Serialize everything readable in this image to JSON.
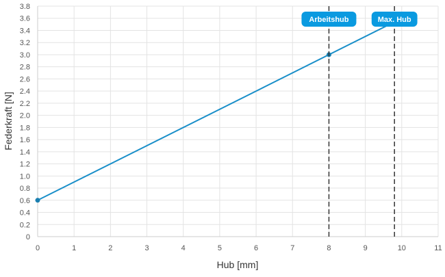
{
  "chart_data": {
    "type": "line",
    "title": "",
    "xlabel": "Hub [mm]",
    "ylabel": "Federkraft [N]",
    "xlim": [
      0,
      11
    ],
    "ylim": [
      0,
      3.8
    ],
    "x_ticks": [
      0,
      1,
      2,
      3,
      4,
      5,
      6,
      7,
      8,
      9,
      10,
      11
    ],
    "x_tick_labels": [
      "0",
      "1",
      "2",
      "3",
      "4",
      "5",
      "6",
      "7",
      "8",
      "9",
      "10",
      "11"
    ],
    "y_ticks": [
      0,
      0.2,
      0.4,
      0.6,
      0.8,
      1.0,
      1.2,
      1.4,
      1.6,
      1.8,
      2.0,
      2.2,
      2.4,
      2.6,
      2.8,
      3.0,
      3.2,
      3.4,
      3.6,
      3.8
    ],
    "y_tick_labels": [
      "0",
      "0.2",
      "0.4",
      "0.6",
      "0.8",
      "1.0",
      "1.2",
      "1.4",
      "1.6",
      "1.8",
      "2.0",
      "2.2",
      "2.4",
      "2.6",
      "2.8",
      "3.0",
      "3.2",
      "3.4",
      "3.6",
      "3.8"
    ],
    "grid": true,
    "series": [
      {
        "x": [
          0,
          9.8
        ],
        "y": [
          0.6,
          3.54
        ],
        "color": "#1a8fc9"
      }
    ],
    "points": [
      {
        "x": 0,
        "y": 0.6
      },
      {
        "x": 8,
        "y": 3.0
      }
    ],
    "vlines": [
      {
        "x": 8,
        "label": "Arbeitshub"
      },
      {
        "x": 9.8,
        "label": "Max. Hub"
      }
    ],
    "colors": {
      "line": "#1a8fc9",
      "point": "#1a7fb0",
      "badge": "#0a9ae0",
      "vline": "#333333",
      "grid": "#e3e3e3"
    }
  }
}
